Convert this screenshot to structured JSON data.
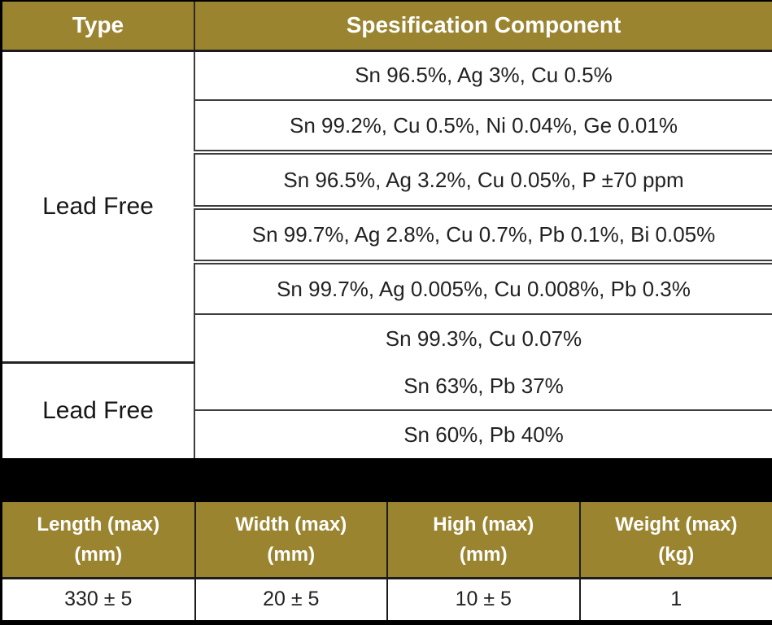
{
  "colors": {
    "header_bg": "#9a8430",
    "band": "#000000",
    "header_text": "#ffffff",
    "body_text": "#222222"
  },
  "spec_table": {
    "headers": [
      "Type",
      "Spesification Component"
    ],
    "groups": [
      {
        "type": "Lead Free",
        "specs": [
          "Sn 96.5%, Ag 3%, Cu 0.5%",
          "Sn 99.2%, Cu 0.5%, Ni 0.04%, Ge 0.01%",
          "Sn 96.5%, Ag 3.2%, Cu 0.05%, P ±70 ppm",
          "Sn 99.7%, Ag 2.8%, Cu 0.7%, Pb 0.1%, Bi 0.05%",
          "Sn 99.7%, Ag 0.005%, Cu 0.008%, Pb 0.3%",
          "Sn 99.3%, Cu 0.07%"
        ]
      },
      {
        "type": "Lead Free",
        "specs": [
          "Sn 63%, Pb 37%",
          "Sn 60%, Pb 40%"
        ]
      }
    ]
  },
  "dimension_table": {
    "headers": [
      {
        "line1": "Length (max)",
        "line2": "(mm)"
      },
      {
        "line1": "Width (max)",
        "line2": "(mm)"
      },
      {
        "line1": "High (max)",
        "line2": "(mm)"
      },
      {
        "line1": "Weight (max)",
        "line2": "(kg)"
      }
    ],
    "values": [
      "330 ± 5",
      "20 ± 5",
      "10 ± 5",
      "1"
    ]
  }
}
